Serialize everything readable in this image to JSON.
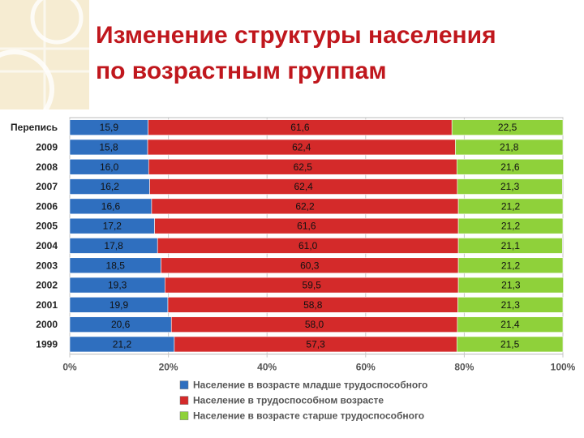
{
  "slide": {
    "title_line1": "Изменение структуры населения",
    "title_line2": "по возрастным группам"
  },
  "colors": {
    "title": "#c0171d",
    "young": "#2f6fbf",
    "working": "#d42a2a",
    "old": "#8fd13a"
  },
  "chart_data": {
    "type": "bar",
    "orientation": "horizontal",
    "stacked": "percent",
    "title": "",
    "xlabel": "",
    "ylabel": "",
    "categories": [
      "Перепись",
      "2009",
      "2008",
      "2007",
      "2006",
      "2005",
      "2004",
      "2003",
      "2002",
      "2001",
      "2000",
      "1999"
    ],
    "series": [
      {
        "name": "Население в возрасте младше трудоспособного",
        "color": "#2f6fbf",
        "values": [
          15.9,
          15.8,
          16.0,
          16.2,
          16.6,
          17.2,
          17.8,
          18.5,
          19.3,
          19.9,
          20.6,
          21.2
        ],
        "labels": [
          "15,9",
          "15,8",
          "16,0",
          "16,2",
          "16,6",
          "17,2",
          "17,8",
          "18,5",
          "19,3",
          "19,9",
          "20,6",
          "21,2"
        ]
      },
      {
        "name": "Население в трудоспособном возрасте",
        "color": "#d42a2a",
        "values": [
          61.6,
          62.4,
          62.5,
          62.4,
          62.2,
          61.6,
          61.0,
          60.3,
          59.5,
          58.8,
          58.0,
          57.3
        ],
        "labels": [
          "61,6",
          "62,4",
          "62,5",
          "62,4",
          "62,2",
          "61,6",
          "61,0",
          "60,3",
          "59,5",
          "58,8",
          "58,0",
          "57,3"
        ]
      },
      {
        "name": "Население в возрасте старше трудоспособного",
        "color": "#8fd13a",
        "values": [
          22.5,
          21.8,
          21.6,
          21.3,
          21.2,
          21.2,
          21.1,
          21.2,
          21.3,
          21.3,
          21.4,
          21.5
        ],
        "labels": [
          "22,5",
          "21,8",
          "21,6",
          "21,3",
          "21,2",
          "21,2",
          "21,1",
          "21,2",
          "21,3",
          "21,3",
          "21,4",
          "21,5"
        ]
      }
    ],
    "xlim": [
      0,
      100
    ],
    "xticks": [
      "0%",
      "20%",
      "40%",
      "60%",
      "80%",
      "100%"
    ],
    "grid": true,
    "legend_position": "bottom"
  }
}
